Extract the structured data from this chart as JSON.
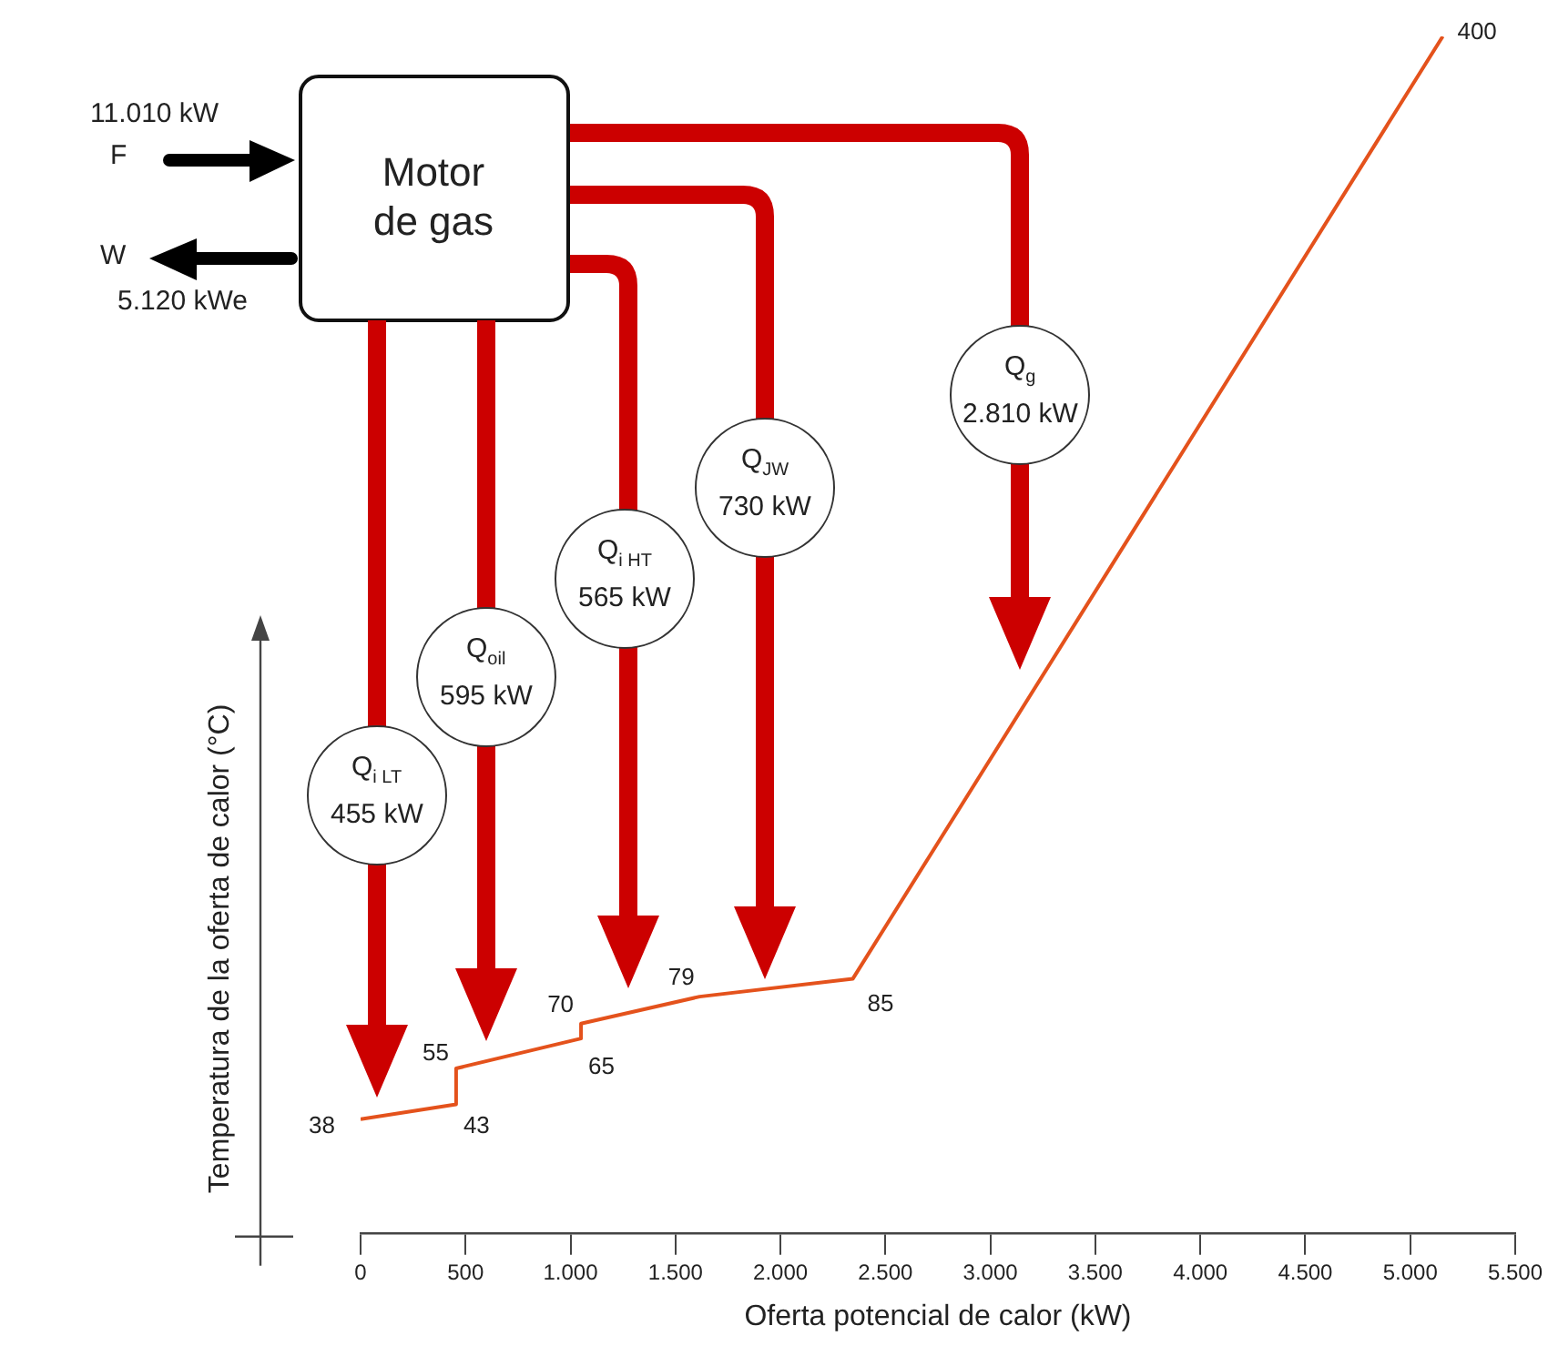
{
  "chart_data": {
    "type": "line",
    "xlabel": "Oferta potencial de calor (kW)",
    "ylabel": "Temperatura de la oferta de calor (°C)",
    "x": [
      0,
      455,
      455,
      1050,
      1050,
      1615,
      2345,
      5155
    ],
    "values": [
      38,
      43,
      55,
      65,
      70,
      79,
      85,
      400
    ],
    "value_labels": [
      "38",
      "43",
      "55",
      "65",
      "70",
      "79",
      "85",
      "400"
    ],
    "color": "#e4521c",
    "marker": "none",
    "xlim": [
      0,
      5500
    ],
    "xticks": [
      0,
      500,
      {
        "value": 1000,
        "label": "1.000"
      },
      {
        "value": 1500,
        "label": "1.500"
      },
      {
        "value": 2000,
        "label": "2.000"
      },
      {
        "value": 2500,
        "label": "2.500"
      },
      {
        "value": 3000,
        "label": "3.000"
      },
      {
        "value": 3500,
        "label": "3.500"
      },
      {
        "value": 4000,
        "label": "4.000"
      },
      {
        "value": 4500,
        "label": "4.500"
      },
      {
        "value": 5000,
        "label": "5.000"
      },
      {
        "value": 5500,
        "label": "5.500"
      }
    ],
    "annotations": [
      "Motor de gas",
      "11.010 kW",
      "F",
      "W",
      "5.120 kWe",
      "Q$_{i LT}$",
      "455 kW",
      "Q$_{oil}$",
      "595 kW",
      "Q$_{i HT}$",
      "565 kW",
      "Q$_{JW}$",
      "730 kW",
      "Q$_{g}$",
      "2.810 kW"
    ]
  }
}
